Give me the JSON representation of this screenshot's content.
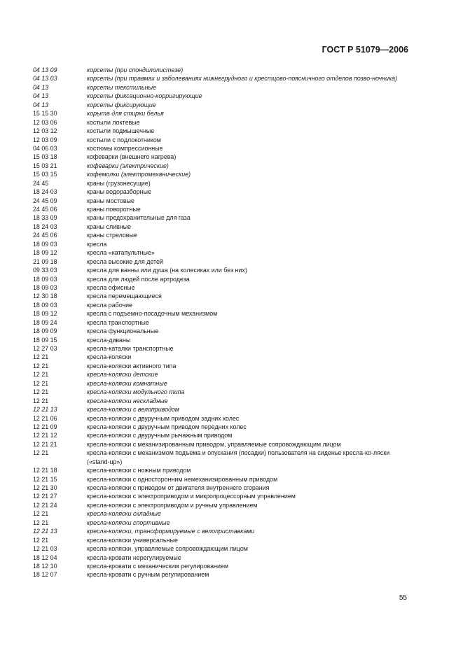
{
  "header": {
    "title": "ГОСТ Р 51079—2006"
  },
  "rows": [
    {
      "code": "04 13 09",
      "text": "корсеты (при спондилолистезе)",
      "italic": true,
      "code_italic": true
    },
    {
      "code": "04 13 03",
      "text": "корсеты (при травмах и заболеваниях нижнегрудного и крестцово-поясничного отделов позво-ночника)",
      "italic": true,
      "code_italic": true
    },
    {
      "code": "04 13",
      "text": "корсеты текстильные",
      "italic": true,
      "code_italic": true
    },
    {
      "code": "04 13",
      "text": "корсеты фиксационно-корригирующие",
      "italic": true,
      "code_italic": true
    },
    {
      "code": "04 13",
      "text": "корсеты фиксирующие",
      "italic": true,
      "code_italic": true
    },
    {
      "code": "15 15 30",
      "text": "корыта для стирки белья",
      "italic": true,
      "code_italic": false
    },
    {
      "code": "12 03 06",
      "text": "костыли локтевые"
    },
    {
      "code": "12 03 12",
      "text": "костыли подмышечные"
    },
    {
      "code": "12 03 09",
      "text": "костыли с подлокотником"
    },
    {
      "code": "04 06 03",
      "text": "костюмы компрессионные"
    },
    {
      "code": "15 03 18",
      "text": "кофеварки (внешнего нагрева)"
    },
    {
      "code": "15 03 21",
      "text": "кофеварки (электрические)",
      "italic": true
    },
    {
      "code": "15 03 15",
      "text": "кофемолки (электромеханические)",
      "italic": true
    },
    {
      "code": "24 45",
      "text": "краны (грузонесущие)"
    },
    {
      "code": "18 24 03",
      "text": "краны водоразборные"
    },
    {
      "code": "24 45 09",
      "text": "краны мостовые"
    },
    {
      "code": "24 45 06",
      "text": "краны поворотные"
    },
    {
      "code": "18 33 09",
      "text": "краны предохранительные для газа"
    },
    {
      "code": "18 24 03",
      "text": "краны сливные"
    },
    {
      "code": "24 45 06",
      "text": "краны стреловые"
    },
    {
      "code": "18 09 03",
      "text": "кресла"
    },
    {
      "code": "18 09 12",
      "text": "кресла «катапультные»"
    },
    {
      "code": "21 09 18",
      "text": "кресла высокие для детей"
    },
    {
      "code": "09 33 03",
      "text": "кресла для ванны или душа (на колесиках или без них)"
    },
    {
      "code": "18 09 03",
      "text": "кресла для людей после артродеза"
    },
    {
      "code": "18 09 03",
      "text": "кресла офисные"
    },
    {
      "code": "12 30 18",
      "text": "кресла перемещающиеся"
    },
    {
      "code": "18 09 03",
      "text": "кресла рабочие"
    },
    {
      "code": "18 09 12",
      "text": "кресла с подъемно-посадочным механизмом"
    },
    {
      "code": "18 09 24",
      "text": "кресла транспортные"
    },
    {
      "code": "18 09 09",
      "text": "кресла функциональные"
    },
    {
      "code": "18 09 15",
      "text": "кресла-диваны"
    },
    {
      "code": "12 27 03",
      "text": "кресла-каталки транспортные"
    },
    {
      "code": "12 21",
      "text": "кресла-коляски"
    },
    {
      "code": "12 21",
      "text": "кресла-коляски активного типа"
    },
    {
      "code": "12 21",
      "text": "кресла-коляски детские",
      "italic": true
    },
    {
      "code": "12 21",
      "text": "кресла-коляски комнатные",
      "italic": true
    },
    {
      "code": "12 21",
      "text": "кресла-коляски модульного типа",
      "italic": true
    },
    {
      "code": "12 21",
      "text": "кресла-коляски нескладные",
      "italic": true
    },
    {
      "code": "12 21 13",
      "text": "кресла-коляски с велоприводом",
      "italic": true,
      "code_italic": true
    },
    {
      "code": "12 21 06",
      "text": "кресла-коляски с двуручным приводом задних колес"
    },
    {
      "code": "12 21 09",
      "text": "кресла-коляски с двуручным приводом передних колес"
    },
    {
      "code": "12 21 12",
      "text": "кресла-коляски с двуручным рычажным приводом"
    },
    {
      "code": "12 21 21",
      "text": "кресла-коляски с механизированным приводом, управляемые сопровождающим лицом"
    },
    {
      "code": "12 21",
      "text": "кресла-коляски с механизмом подъема и опускания (посадки) пользователя на сиденье кресла-ко-ляски («stand-up»)"
    },
    {
      "code": "12 21 18",
      "text": "кресла-коляски с ножным приводом"
    },
    {
      "code": "12 21 15",
      "text": "кресла-коляски с односторонним немеханизированным приводом"
    },
    {
      "code": "12 21 30",
      "text": "кресла-коляски с приводом от двигателя внутреннего сгорания"
    },
    {
      "code": "12 21 27",
      "text": "кресла-коляски с электроприводом и микропроцессорным управлением"
    },
    {
      "code": "12 21 24",
      "text": "кресла-коляски с электроприводом и ручным управлением"
    },
    {
      "code": "12 21",
      "text": "кресла-коляски складные",
      "italic": true
    },
    {
      "code": "12 21",
      "text": "кресла-коляски спортивные",
      "italic": true
    },
    {
      "code": "12 21 13",
      "text": "кресла-коляски, трансформируемые с велоприставками",
      "italic": true,
      "code_italic": true
    },
    {
      "code": "12 21",
      "text": "кресла-коляски универсальные"
    },
    {
      "code": "12 21 03",
      "text": "кресла-коляски, управляемые сопровождающим лицом"
    },
    {
      "code": "18 12 04",
      "text": "кресла-кровати нерегулируемые"
    },
    {
      "code": "18 12 10",
      "text": "кресла-кровати с механическим регулированием"
    },
    {
      "code": "18 12 07",
      "text": "кресла-кровати с ручным регулированием"
    }
  ],
  "footer": {
    "page_number": "55"
  }
}
